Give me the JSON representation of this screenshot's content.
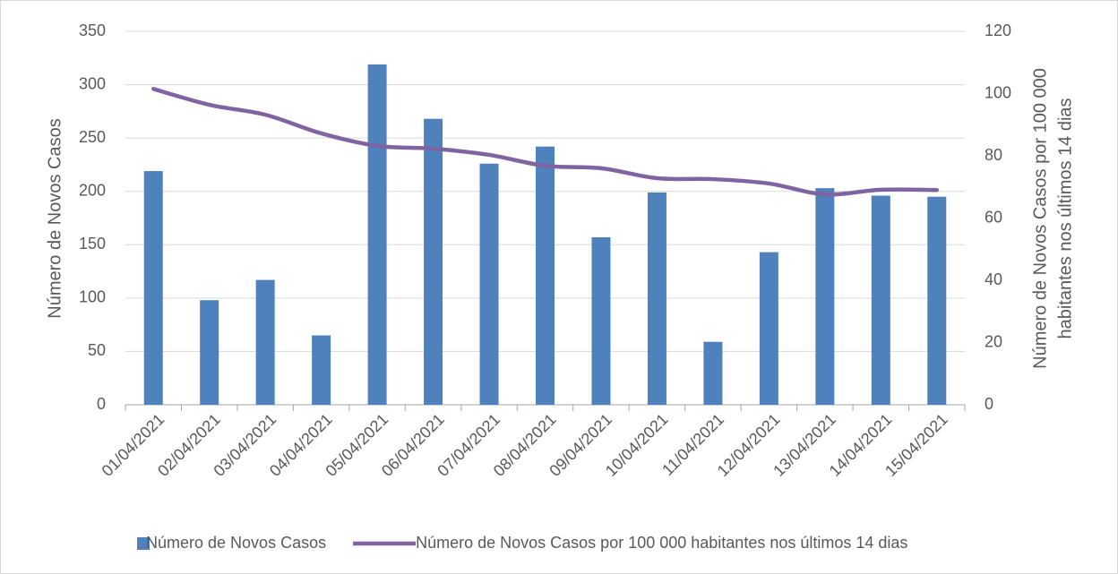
{
  "chart_data": {
    "type": "bar-line",
    "categories": [
      "01/04/2021",
      "02/04/2021",
      "03/04/2021",
      "04/04/2021",
      "05/04/2021",
      "06/04/2021",
      "07/04/2021",
      "08/04/2021",
      "09/04/2021",
      "10/04/2021",
      "11/04/2021",
      "12/04/2021",
      "13/04/2021",
      "14/04/2021",
      "15/04/2021"
    ],
    "series": [
      {
        "name": "Número de Novos Casos",
        "type": "bar",
        "color": "#4f81bd",
        "values": [
          219,
          98,
          117,
          65,
          319,
          268,
          226,
          242,
          157,
          199,
          59,
          143,
          203,
          196,
          195
        ]
      },
      {
        "name": "Número de Novos Casos por 100 000 habitantes nos últimos 14 dias",
        "type": "line",
        "axis": "y2",
        "color": "#8064a2",
        "values": [
          101.5,
          96.4,
          93.2,
          87.2,
          83.2,
          82.3,
          80.3,
          76.8,
          76,
          72.8,
          72.5,
          71.1,
          67.6,
          69.1,
          69
        ]
      }
    ],
    "y_label": "Número de Novos Casos",
    "y2_label": [
      "Número de Novos Casos por 100 000",
      "habitantes nos últimos 14 dias"
    ],
    "ylim": [
      0,
      350
    ],
    "yticks": [
      0,
      50,
      100,
      150,
      200,
      250,
      300,
      350
    ],
    "y2lim": [
      0,
      120
    ],
    "y2ticks": [
      0,
      20,
      40,
      60,
      80,
      100,
      120
    ],
    "grid": true,
    "legend": "bottom"
  }
}
